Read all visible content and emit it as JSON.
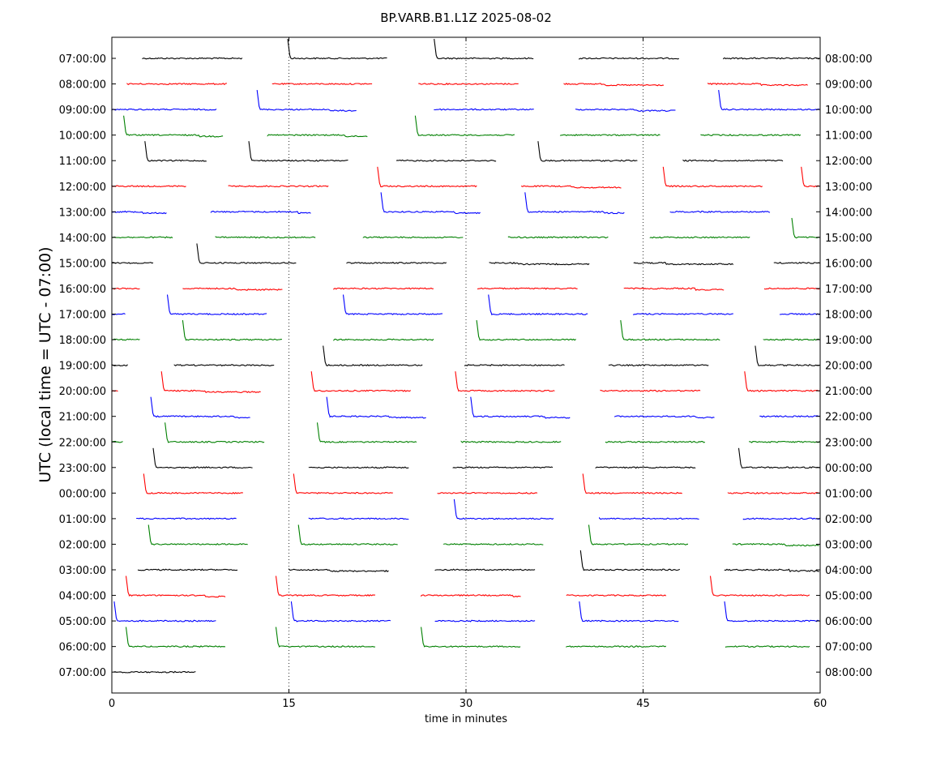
{
  "chart_data": {
    "type": "line",
    "title": "BP.VARB.B1.L1Z 2025-08-02",
    "xlabel": "time in minutes",
    "ylabel": "UTC (local time = UTC - 07:00)",
    "xlim": [
      0,
      60
    ],
    "x_ticks": [
      "0",
      "15",
      "30",
      "45",
      "60"
    ],
    "x_grid_minutes": [
      15,
      30,
      45
    ],
    "grid_style": "dotted",
    "left_tick_labels": [
      "07:00:00",
      "08:00:00",
      "09:00:00",
      "10:00:00",
      "11:00:00",
      "12:00:00",
      "13:00:00",
      "14:00:00",
      "15:00:00",
      "16:00:00",
      "17:00:00",
      "18:00:00",
      "19:00:00",
      "20:00:00",
      "21:00:00",
      "22:00:00",
      "23:00:00",
      "00:00:00",
      "01:00:00",
      "02:00:00",
      "03:00:00",
      "04:00:00",
      "05:00:00",
      "06:00:00",
      "07:00:00"
    ],
    "right_tick_labels": [
      "08:00:00",
      "09:00:00",
      "10:00:00",
      "11:00:00",
      "12:00:00",
      "13:00:00",
      "14:00:00",
      "15:00:00",
      "16:00:00",
      "17:00:00",
      "18:00:00",
      "19:00:00",
      "20:00:00",
      "21:00:00",
      "22:00:00",
      "23:00:00",
      "00:00:00",
      "01:00:00",
      "02:00:00",
      "03:00:00",
      "04:00:00",
      "05:00:00",
      "06:00:00",
      "07:00:00",
      "08:00:00"
    ],
    "trace_colors": [
      "#000000",
      "#ff0000",
      "#0000ff",
      "#008000"
    ],
    "rows": [
      {
        "segments": [
          [
            2.6,
            11.1
          ],
          [
            14.9,
            23.4
          ],
          [
            27.3,
            35.8
          ],
          [
            39.6,
            48.1
          ],
          [
            51.8,
            60.0
          ]
        ],
        "drops": [
          14.9,
          27.3
        ],
        "steps": [
          [
            50.0,
            -1
          ]
        ]
      },
      {
        "segments": [
          [
            1.3,
            9.8
          ],
          [
            13.6,
            22.1
          ],
          [
            26.0,
            34.5
          ],
          [
            38.3,
            46.8
          ],
          [
            50.5,
            59.0
          ]
        ],
        "drops": [],
        "steps": [
          [
            41.8,
            1
          ],
          [
            55.0,
            1
          ]
        ]
      },
      {
        "segments": [
          [
            0.0,
            8.9
          ],
          [
            12.3,
            20.8
          ],
          [
            27.3,
            35.8
          ],
          [
            39.3,
            47.8
          ],
          [
            51.4,
            60.0
          ]
        ],
        "drops": [
          12.3,
          51.4
        ],
        "steps": [
          [
            18.5,
            1
          ],
          [
            44.5,
            1
          ]
        ]
      },
      {
        "segments": [
          [
            1.0,
            9.5
          ],
          [
            13.2,
            21.7
          ],
          [
            25.7,
            34.2
          ],
          [
            38.0,
            46.5
          ],
          [
            49.9,
            58.4
          ]
        ],
        "drops": [
          1.0,
          25.7
        ],
        "steps": [
          [
            7.5,
            1
          ],
          [
            19.8,
            1
          ]
        ]
      },
      {
        "segments": [
          [
            2.8,
            8.1
          ],
          [
            11.6,
            20.1
          ],
          [
            24.1,
            32.6
          ],
          [
            36.1,
            44.6
          ],
          [
            48.4,
            56.9
          ]
        ],
        "drops": [
          2.8,
          11.6,
          36.1
        ],
        "steps": []
      },
      {
        "segments": [
          [
            0.0,
            6.3
          ],
          [
            9.9,
            18.4
          ],
          [
            22.5,
            31.0
          ],
          [
            34.7,
            43.2
          ],
          [
            46.7,
            55.2
          ],
          [
            58.4,
            60.0
          ]
        ],
        "drops": [
          22.5,
          46.7,
          58.4
        ],
        "steps": [
          [
            39.0,
            1
          ]
        ]
      },
      {
        "segments": [
          [
            0.0,
            4.7
          ],
          [
            8.4,
            16.9
          ],
          [
            22.8,
            31.3
          ],
          [
            35.0,
            43.5
          ],
          [
            47.3,
            55.8
          ]
        ],
        "drops": [
          22.8,
          35.0
        ],
        "steps": [
          [
            2.7,
            1
          ],
          [
            15.8,
            1
          ],
          [
            29.0,
            1
          ],
          [
            41.8,
            1
          ]
        ]
      },
      {
        "segments": [
          [
            0.0,
            5.2
          ],
          [
            8.8,
            17.3
          ],
          [
            21.3,
            29.8
          ],
          [
            33.6,
            42.1
          ],
          [
            45.6,
            54.1
          ],
          [
            57.6,
            60.0
          ]
        ],
        "drops": [
          57.6
        ],
        "steps": []
      },
      {
        "segments": [
          [
            0.0,
            3.6
          ],
          [
            7.2,
            15.7
          ],
          [
            19.9,
            28.4
          ],
          [
            32.0,
            40.5
          ],
          [
            44.2,
            52.7
          ],
          [
            56.1,
            60.0
          ]
        ],
        "drops": [
          7.2
        ],
        "steps": [
          [
            34.5,
            1
          ],
          [
            47.0,
            1
          ]
        ]
      },
      {
        "segments": [
          [
            0.0,
            2.4
          ],
          [
            6.0,
            14.5
          ],
          [
            18.8,
            27.3
          ],
          [
            31.0,
            39.5
          ],
          [
            43.4,
            51.9
          ],
          [
            55.3,
            60.0
          ]
        ],
        "drops": [],
        "steps": [
          [
            10.5,
            1
          ],
          [
            49.5,
            1
          ]
        ]
      },
      {
        "segments": [
          [
            0.0,
            1.2
          ],
          [
            4.7,
            13.2
          ],
          [
            19.6,
            28.1
          ],
          [
            31.9,
            40.4
          ],
          [
            44.2,
            52.7
          ],
          [
            56.6,
            60.0
          ]
        ],
        "drops": [
          4.7,
          19.6,
          31.9
        ],
        "steps": []
      },
      {
        "segments": [
          [
            0.0,
            2.4
          ],
          [
            6.0,
            14.5
          ],
          [
            18.8,
            27.3
          ],
          [
            30.9,
            39.4
          ],
          [
            43.1,
            51.6
          ],
          [
            55.2,
            60.0
          ]
        ],
        "drops": [
          6.0,
          30.9,
          43.1
        ],
        "steps": []
      },
      {
        "segments": [
          [
            0.0,
            1.4
          ],
          [
            5.3,
            13.8
          ],
          [
            17.9,
            26.4
          ],
          [
            29.9,
            38.4
          ],
          [
            42.1,
            50.6
          ],
          [
            54.5,
            60.0
          ]
        ],
        "drops": [
          17.9,
          54.5
        ],
        "steps": []
      },
      {
        "segments": [
          [
            0.0,
            0.6
          ],
          [
            4.2,
            12.7
          ],
          [
            16.9,
            25.4
          ],
          [
            29.1,
            37.6
          ],
          [
            41.4,
            49.9
          ],
          [
            53.6,
            60.0
          ]
        ],
        "drops": [
          4.2,
          16.9,
          29.1,
          53.6
        ],
        "steps": [
          [
            8.0,
            1
          ]
        ]
      },
      {
        "segments": [
          [
            3.3,
            11.8
          ],
          [
            18.2,
            26.7
          ],
          [
            30.4,
            38.9
          ],
          [
            42.6,
            51.1
          ],
          [
            54.9,
            60.0
          ]
        ],
        "drops": [
          3.3,
          18.2,
          30.4
        ],
        "steps": [
          [
            10.5,
            1
          ],
          [
            23.5,
            1
          ],
          [
            36.8,
            1
          ],
          [
            49.5,
            1
          ]
        ]
      },
      {
        "segments": [
          [
            0.0,
            1.0
          ],
          [
            4.5,
            13.0
          ],
          [
            17.4,
            25.9
          ],
          [
            29.6,
            38.1
          ],
          [
            41.8,
            50.3
          ],
          [
            54.0,
            60.0
          ]
        ],
        "drops": [
          4.5,
          17.4
        ],
        "steps": []
      },
      {
        "segments": [
          [
            3.5,
            12.0
          ],
          [
            16.7,
            25.2
          ],
          [
            28.9,
            37.4
          ],
          [
            41.0,
            49.5
          ],
          [
            53.1,
            60.0
          ]
        ],
        "drops": [
          3.5,
          53.1
        ],
        "steps": []
      },
      {
        "segments": [
          [
            2.7,
            11.2
          ],
          [
            15.4,
            23.9
          ],
          [
            27.6,
            36.1
          ],
          [
            39.9,
            48.4
          ],
          [
            52.2,
            60.0
          ]
        ],
        "drops": [
          2.7,
          15.4,
          39.9
        ],
        "steps": []
      },
      {
        "segments": [
          [
            2.1,
            10.6
          ],
          [
            16.7,
            25.2
          ],
          [
            29.0,
            37.5
          ],
          [
            41.3,
            49.8
          ],
          [
            53.5,
            60.0
          ]
        ],
        "drops": [
          29.0
        ],
        "steps": []
      },
      {
        "segments": [
          [
            3.1,
            11.6
          ],
          [
            15.8,
            24.3
          ],
          [
            28.1,
            36.6
          ],
          [
            40.4,
            48.9
          ],
          [
            52.6,
            60.0
          ]
        ],
        "drops": [
          3.1,
          15.8,
          40.4
        ],
        "steps": [
          [
            57.0,
            1
          ]
        ]
      },
      {
        "segments": [
          [
            2.2,
            10.7
          ],
          [
            15.0,
            23.5
          ],
          [
            27.4,
            35.9
          ],
          [
            39.7,
            48.2
          ],
          [
            51.9,
            60.0
          ]
        ],
        "drops": [
          39.7
        ],
        "steps": [
          [
            18.5,
            1
          ],
          [
            57.5,
            1
          ]
        ]
      },
      {
        "segments": [
          [
            1.2,
            9.7
          ],
          [
            13.9,
            22.4
          ],
          [
            26.2,
            34.7
          ],
          [
            38.5,
            47.0
          ],
          [
            50.7,
            59.2
          ]
        ],
        "drops": [
          1.2,
          13.9,
          50.7
        ],
        "steps": [
          [
            8.0,
            1
          ],
          [
            34.0,
            1
          ]
        ]
      },
      {
        "segments": [
          [
            0.2,
            8.9
          ],
          [
            15.2,
            23.7
          ],
          [
            27.4,
            35.9
          ],
          [
            39.6,
            48.1
          ],
          [
            51.9,
            60.0
          ]
        ],
        "drops": [
          0.2,
          15.2,
          39.6,
          51.9
        ],
        "steps": []
      },
      {
        "segments": [
          [
            1.2,
            9.7
          ],
          [
            13.9,
            22.4
          ],
          [
            26.2,
            34.7
          ],
          [
            38.5,
            47.0
          ],
          [
            52.0,
            59.2
          ]
        ],
        "drops": [
          1.2,
          13.9,
          26.2
        ],
        "steps": []
      },
      {
        "segments": [
          [
            0.2,
            7.1
          ]
        ],
        "drops": [],
        "steps": []
      }
    ]
  }
}
